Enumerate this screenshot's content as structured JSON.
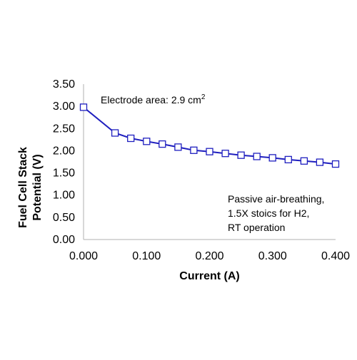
{
  "chart_data": {
    "type": "line",
    "xlabel": "Current  (A)",
    "ylabel_lines": [
      "Fuel Cell Stack",
      "Potential (V)"
    ],
    "xlim": [
      0,
      0.4
    ],
    "ylim": [
      0,
      3.5
    ],
    "x_ticks": [
      {
        "value": 0.0,
        "label": "0.000"
      },
      {
        "value": 0.1,
        "label": "0.100"
      },
      {
        "value": 0.2,
        "label": "0.200"
      },
      {
        "value": 0.3,
        "label": "0.300"
      },
      {
        "value": 0.4,
        "label": "0.400"
      }
    ],
    "y_ticks": [
      {
        "value": 0.0,
        "label": "0.00"
      },
      {
        "value": 0.5,
        "label": "0.50"
      },
      {
        "value": 1.0,
        "label": "1.00"
      },
      {
        "value": 1.5,
        "label": "1.50"
      },
      {
        "value": 2.0,
        "label": "2.00"
      },
      {
        "value": 2.5,
        "label": "2.50"
      },
      {
        "value": 3.0,
        "label": "3.00"
      },
      {
        "value": 3.5,
        "label": "3.50"
      }
    ],
    "grid": false,
    "legend": "none",
    "series": [
      {
        "color": "#1f1fbf",
        "marker": "open-square",
        "points": [
          {
            "x": 0.0,
            "y": 2.98
          },
          {
            "x": 0.05,
            "y": 2.4
          },
          {
            "x": 0.075,
            "y": 2.28
          },
          {
            "x": 0.1,
            "y": 2.21
          },
          {
            "x": 0.125,
            "y": 2.15
          },
          {
            "x": 0.15,
            "y": 2.08
          },
          {
            "x": 0.175,
            "y": 2.01
          },
          {
            "x": 0.2,
            "y": 1.98
          },
          {
            "x": 0.225,
            "y": 1.94
          },
          {
            "x": 0.25,
            "y": 1.9
          },
          {
            "x": 0.275,
            "y": 1.87
          },
          {
            "x": 0.3,
            "y": 1.84
          },
          {
            "x": 0.325,
            "y": 1.8
          },
          {
            "x": 0.35,
            "y": 1.77
          },
          {
            "x": 0.375,
            "y": 1.74
          },
          {
            "x": 0.4,
            "y": 1.7
          }
        ]
      }
    ],
    "annotations": {
      "electrode_text": "Electrode area: 2.9 cm",
      "electrode_superscript": "2",
      "conditions_lines": [
        "Passive air-breathing,",
        "1.5X stoics for H2,",
        "RT operation"
      ]
    }
  }
}
